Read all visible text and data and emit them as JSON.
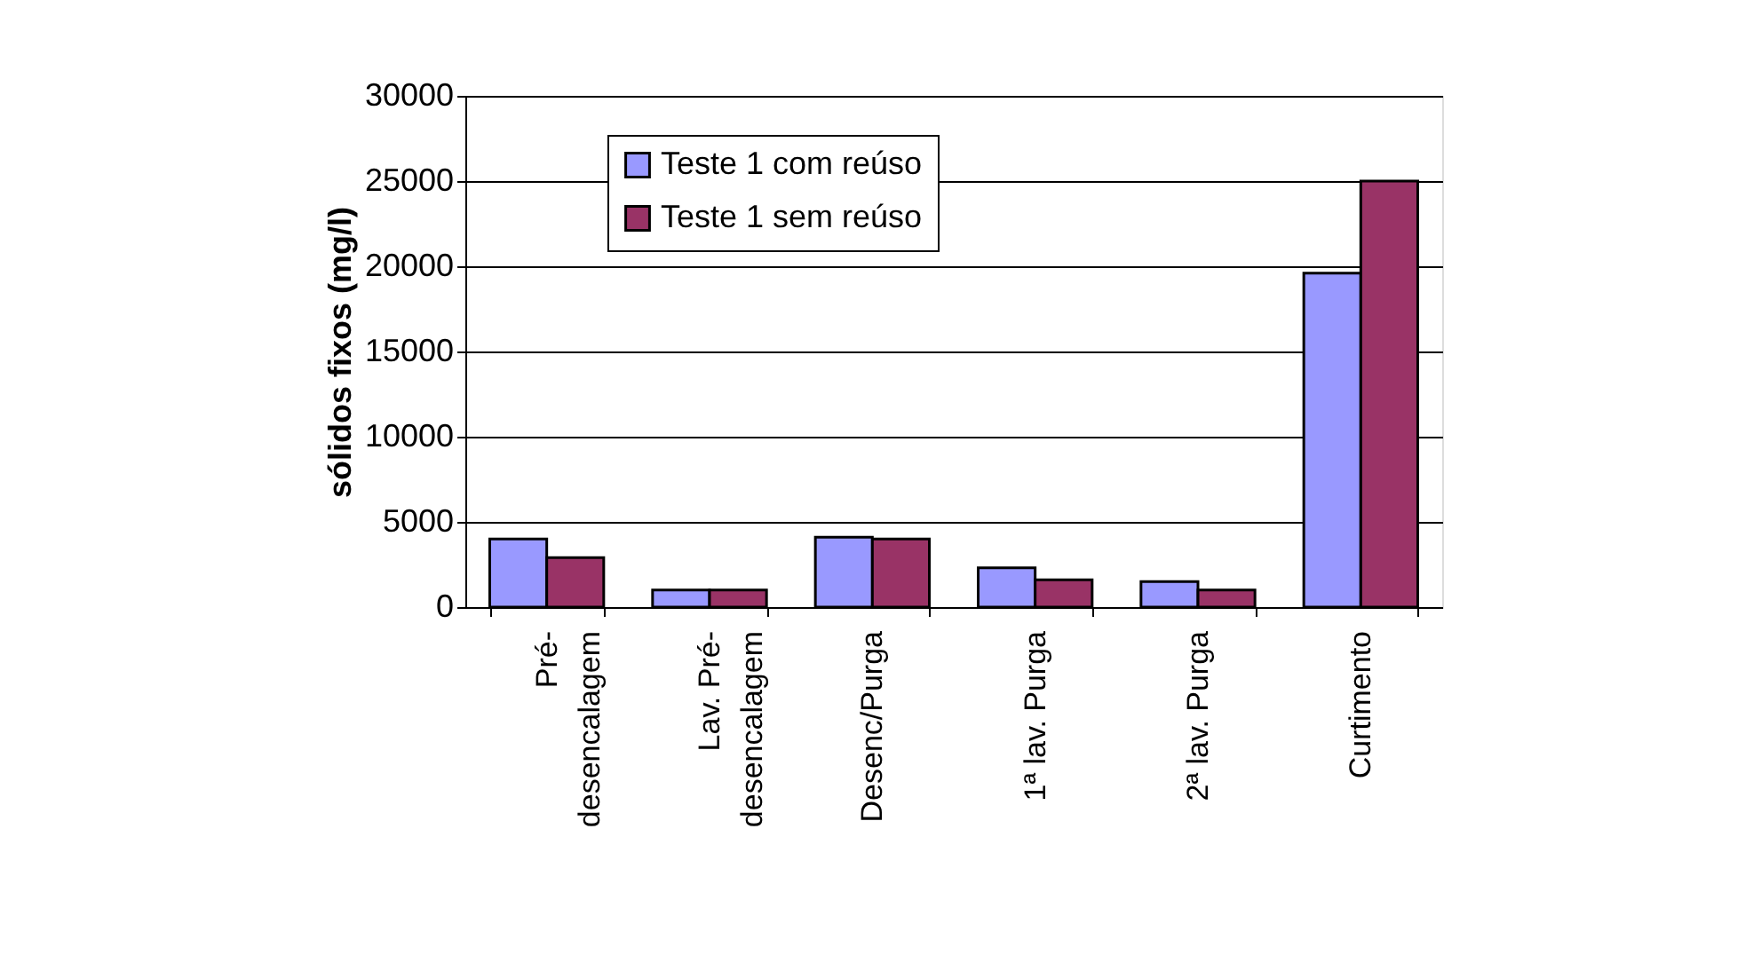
{
  "chart_data": {
    "type": "bar",
    "ylabel": "sólidos fixos (mg/l)",
    "categories": [
      "Pré-\ndesencalagem",
      "Lav. Pré-\ndesencalagem",
      "Desenc/Purga",
      "1ª lav. Purga",
      "2ª lav. Purga",
      "Curtimento"
    ],
    "series": [
      {
        "name": "Teste 1 com reúso",
        "color": "#9999ff",
        "values": [
          4000,
          1000,
          4100,
          2300,
          1500,
          19600
        ]
      },
      {
        "name": "Teste 1 sem reúso",
        "color": "#993366",
        "values": [
          2900,
          1000,
          4000,
          1600,
          1000,
          25000
        ]
      }
    ],
    "ylim": [
      0,
      30000
    ],
    "yticks": [
      0,
      5000,
      10000,
      15000,
      20000,
      25000,
      30000
    ],
    "grid": "y",
    "legend": "top left"
  }
}
